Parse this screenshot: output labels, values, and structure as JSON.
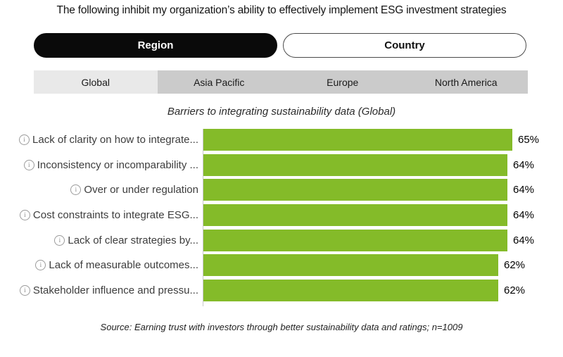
{
  "page": {
    "title": "The following inhibit my organization’s ability to effectively implement ESG investment strategies",
    "source": "Source: Earning trust with investors through better sustainability data and ratings; n=1009"
  },
  "toggle": {
    "region_label": "Region",
    "country_label": "Country",
    "active": "Region"
  },
  "tabs": {
    "active": "Global",
    "items": [
      {
        "label": "Global",
        "active": true
      },
      {
        "label": "Asia Pacific",
        "active": false
      },
      {
        "label": "Europe",
        "active": false
      },
      {
        "label": "North America",
        "active": false
      }
    ]
  },
  "icons": {
    "info": "i",
    "info_name": "info-circle-icon"
  },
  "colors": {
    "bar_green": "#84bb29",
    "toggle_active_bg": "#0a0a0a",
    "tab_active_bg": "#e9e9e9",
    "tab_inactive_bg": "#cbcbcb",
    "axis_line": "#c9c9c9"
  },
  "chart_data": {
    "type": "bar",
    "orientation": "horizontal",
    "title": "Barriers to integrating sustainability data (Global)",
    "categories": [
      "Lack of clarity on how to integrate...",
      "Inconsistency or incomparability ...",
      "Over or under regulation",
      "Cost constraints to integrate ESG...",
      "Lack of clear strategies by...",
      "Lack of measurable outcomes...",
      "Stakeholder influence and pressu..."
    ],
    "values": [
      65,
      64,
      64,
      64,
      64,
      62,
      62
    ],
    "value_labels": [
      "65%",
      "64%",
      "64%",
      "64%",
      "64%",
      "62%",
      "62%"
    ],
    "value_unit": "%",
    "xlim": [
      0,
      68
    ],
    "grid": "off",
    "legend": "none",
    "bar_color": "#84bb29"
  }
}
